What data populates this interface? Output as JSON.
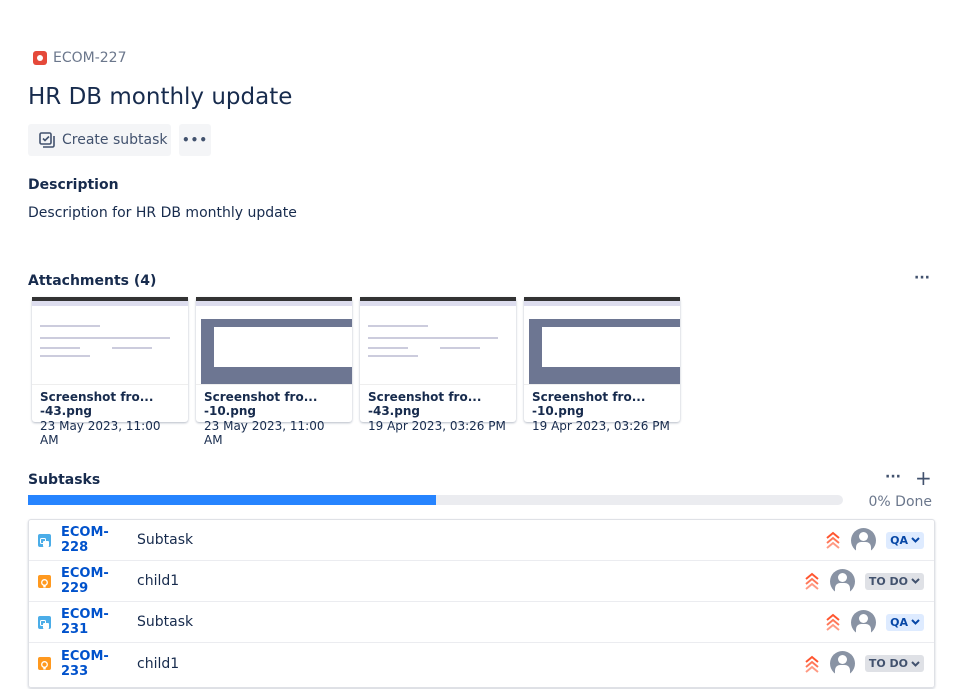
{
  "issue": {
    "key": "ECOM-227",
    "type_icon": "bug-icon",
    "title": "HR DB monthly update"
  },
  "actions": {
    "create_subtask": "Create subtask",
    "more": "•••"
  },
  "description": {
    "heading": "Description",
    "text": "Description for HR DB monthly update"
  },
  "attachments": {
    "heading": "Attachments (4)",
    "more": "···",
    "items": [
      {
        "name": "Screenshot fro...  -43.png",
        "date": "23 May 2023, 11:00 AM",
        "thumb": "light"
      },
      {
        "name": "Screenshot fro...  -10.png",
        "date": "23 May 2023, 11:00 AM",
        "thumb": "dark"
      },
      {
        "name": "Screenshot fro...  -43.png",
        "date": "19 Apr 2023, 03:26 PM",
        "thumb": "light"
      },
      {
        "name": "Screenshot fro...  -10.png",
        "date": "19 Apr 2023, 03:26 PM",
        "thumb": "dark"
      }
    ]
  },
  "subtasks": {
    "heading": "Subtasks",
    "more": "···",
    "add": "+",
    "progress_label": "0% Done",
    "progress_fill": 0.5,
    "colors": {
      "fill": "#2684ff",
      "priority": "#ff5630"
    },
    "items": [
      {
        "key": "ECOM-228",
        "summary": "Subtask",
        "type": "subtask",
        "status": "QA"
      },
      {
        "key": "ECOM-229",
        "summary": "child1",
        "type": "idea",
        "status": "TO DO"
      },
      {
        "key": "ECOM-231",
        "summary": "Subtask",
        "type": "subtask",
        "status": "QA"
      },
      {
        "key": "ECOM-233",
        "summary": "child1",
        "type": "idea",
        "status": "TO DO"
      }
    ]
  }
}
